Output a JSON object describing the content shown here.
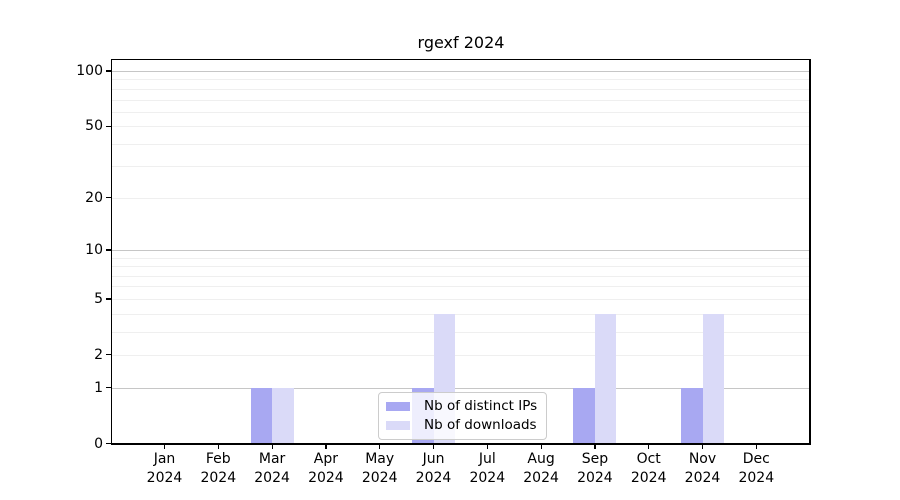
{
  "title": "rgexf 2024",
  "chart_data": {
    "type": "bar",
    "title": "rgexf 2024",
    "categories": [
      "Jan",
      "Feb",
      "Mar",
      "Apr",
      "May",
      "Jun",
      "Jul",
      "Aug",
      "Sep",
      "Oct",
      "Nov",
      "Dec"
    ],
    "category_year": "2024",
    "series": [
      {
        "name": "Nb of distinct IPs",
        "color": "#a8a8f2",
        "values": [
          0,
          0,
          1,
          0,
          0,
          1,
          0,
          0,
          1,
          0,
          1,
          0
        ]
      },
      {
        "name": "Nb of downloads",
        "color": "#dadaf8",
        "values": [
          0,
          0,
          1,
          0,
          0,
          4,
          0,
          0,
          4,
          0,
          4,
          0
        ]
      }
    ],
    "yscale": "log1p",
    "ylim": [
      0,
      115
    ],
    "y_ticks": [
      0,
      1,
      2,
      5,
      10,
      20,
      50,
      100
    ],
    "y_major_grid": [
      1,
      10,
      100
    ],
    "y_minor_grid": [
      2,
      3,
      4,
      5,
      6,
      7,
      8,
      9,
      20,
      30,
      40,
      50,
      60,
      70,
      80,
      90
    ],
    "grid": "on",
    "legend_position": "lower center (inside plot)",
    "colors": {
      "major_grid": "#c6c6c6",
      "minor_grid": "#efefef",
      "axis": "#000000",
      "background": "#ffffff"
    }
  }
}
